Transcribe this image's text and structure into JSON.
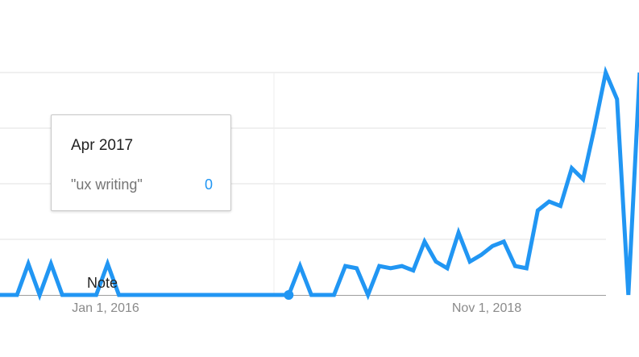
{
  "chart_data": {
    "type": "line",
    "title": "",
    "xlabel": "",
    "ylabel": "",
    "ylim": [
      0,
      100
    ],
    "grid": true,
    "x_ticks": [
      "Jan 1, 2016",
      "Nov 1, 2018"
    ],
    "series": [
      {
        "name": "\"ux writing\"",
        "color": "#2196f3",
        "x": [
          "2015-02",
          "2015-03",
          "2015-04",
          "2015-05",
          "2015-06",
          "2015-07",
          "2015-08",
          "2015-09",
          "2015-10",
          "2015-11",
          "2015-12",
          "2016-01",
          "2016-02",
          "2016-03",
          "2016-04",
          "2016-05",
          "2016-06",
          "2016-07",
          "2016-08",
          "2016-09",
          "2016-10",
          "2016-11",
          "2016-12",
          "2017-01",
          "2017-02",
          "2017-03",
          "2017-04",
          "2017-05",
          "2017-06",
          "2017-07",
          "2017-08",
          "2017-09",
          "2017-10",
          "2017-11",
          "2017-12",
          "2018-01",
          "2018-02",
          "2018-03",
          "2018-04",
          "2018-05",
          "2018-06",
          "2018-07",
          "2018-08",
          "2018-09",
          "2018-10",
          "2018-11",
          "2018-12",
          "2019-01",
          "2019-02",
          "2019-03",
          "2019-04",
          "2019-05",
          "2019-06",
          "2019-07",
          "2019-08",
          "2019-09",
          "2019-10",
          "2019-11",
          "2019-12"
        ],
        "values": [
          0,
          0,
          0,
          14,
          0,
          14,
          0,
          0,
          0,
          0,
          14,
          0,
          0,
          0,
          0,
          0,
          0,
          0,
          0,
          0,
          0,
          0,
          0,
          0,
          0,
          0,
          0,
          13,
          0,
          0,
          0,
          13,
          12,
          0,
          13,
          12,
          13,
          11,
          24,
          15,
          12,
          28,
          15,
          18,
          22,
          24,
          13,
          12,
          38,
          42,
          40,
          57,
          52,
          75,
          100,
          88,
          0,
          0,
          0
        ],
        "partial_values": {
          "x": [
            "2019-11",
            "2019-12"
          ],
          "values": [
            100,
            72
          ]
        }
      }
    ],
    "annotations": [
      "Note"
    ],
    "highlight_point": {
      "x": "2017-04",
      "value": 0
    }
  },
  "tooltip": {
    "title": "Apr 2017",
    "term": "\"ux writing\"",
    "value": "0"
  }
}
